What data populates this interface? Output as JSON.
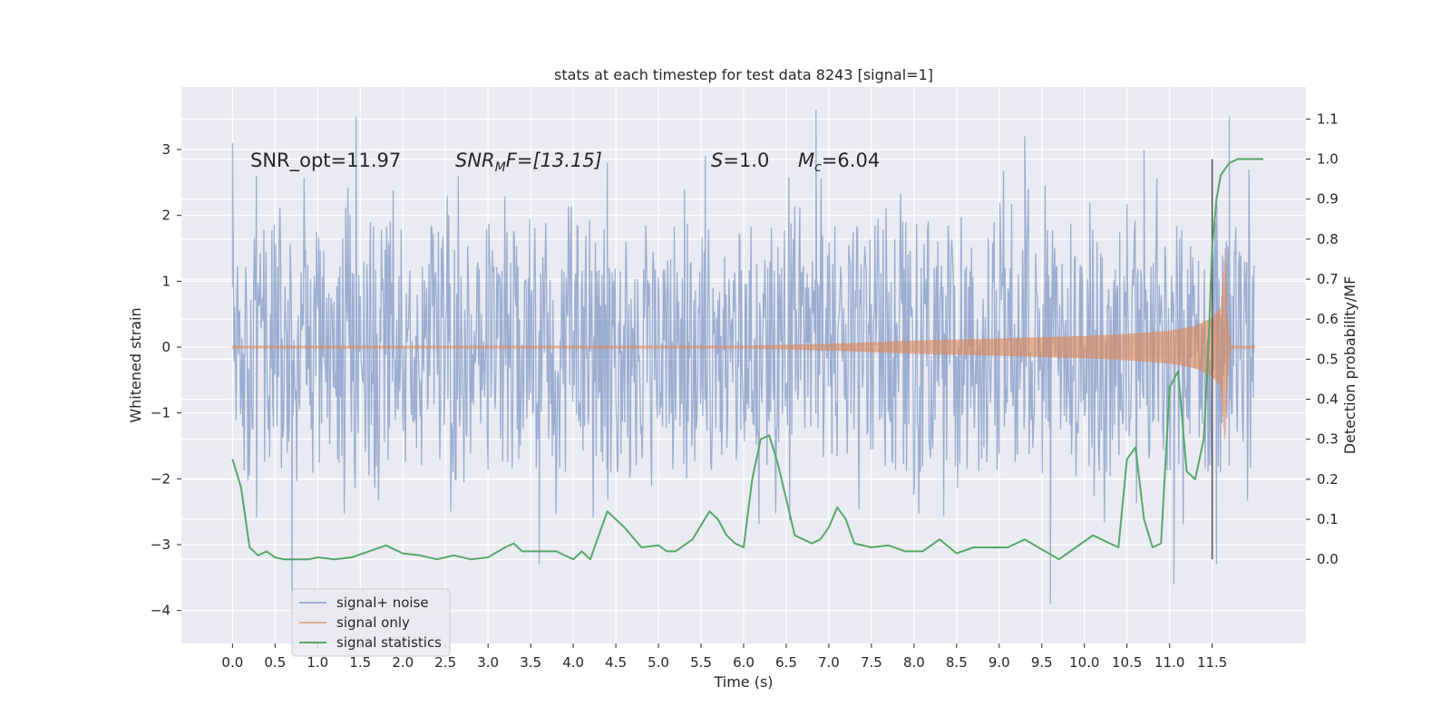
{
  "chart_data": {
    "type": "line",
    "title": "stats at each timestep for test data 8243 [signal=1]",
    "xlabel": "Time (s)",
    "ylabel_left": "Whitened strain",
    "ylabel_right": "Detection probability/MF",
    "xlim": [
      -0.6,
      12.6
    ],
    "ylim_left": [
      -4.5,
      3.95
    ],
    "ylim_right": [
      -0.21,
      1.18
    ],
    "x_ticks": [
      "0.0",
      "0.5",
      "1.0",
      "1.5",
      "2.0",
      "2.5",
      "3.0",
      "3.5",
      "4.0",
      "4.5",
      "5.0",
      "5.5",
      "6.0",
      "6.5",
      "7.0",
      "7.5",
      "8.0",
      "8.5",
      "9.0",
      "9.5",
      "10.0",
      "10.5",
      "11.0",
      "11.5"
    ],
    "y_ticks_left": [
      "3",
      "2",
      "1",
      "0",
      "−1",
      "−2",
      "−3",
      "−4"
    ],
    "y_ticks_right": [
      "1.1",
      "1.0",
      "0.9",
      "0.8",
      "0.7",
      "0.6",
      "0.5",
      "0.4",
      "0.3",
      "0.2",
      "0.1",
      "0.0"
    ],
    "grid": true,
    "legend_position": "lower-left",
    "annotations": {
      "snr_opt": "SNR_opt=11.97",
      "snr_mf_a": "SNR",
      "snr_mf_sub": "M",
      "snr_mf_b": "F=[13.15]",
      "s_a": "S",
      "s_b": "=1.0",
      "mc_a": "M",
      "mc_sub": "c",
      "mc_b": "=6.04"
    },
    "vline_x": 11.5,
    "series": [
      {
        "name": "signal+ noise",
        "color": "#4c72b0",
        "axis": "left",
        "description_envelope": {
          "x": [
            0.0,
            12.0
          ],
          "typical_max": 1.6,
          "typical_min": -1.6,
          "peaks": [
            [
              0.0,
              3.1
            ],
            [
              0.28,
              2.6
            ],
            [
              1.45,
              3.5
            ],
            [
              2.65,
              2.6
            ],
            [
              4.4,
              2.8
            ],
            [
              5.55,
              2.9
            ],
            [
              6.85,
              3.6
            ],
            [
              9.3,
              3.2
            ],
            [
              10.7,
              3.0
            ],
            [
              11.7,
              3.5
            ],
            [
              0.7,
              -4.0
            ],
            [
              3.6,
              -3.3
            ],
            [
              9.6,
              -3.9
            ],
            [
              11.05,
              -3.6
            ],
            [
              11.55,
              -3.3
            ]
          ]
        }
      },
      {
        "name": "signal only",
        "color": "#dd8452",
        "axis": "left",
        "envelope": {
          "x": [
            0.0,
            6.0,
            7.0,
            8.0,
            9.0,
            10.0,
            10.5,
            11.0,
            11.3,
            11.5,
            11.6,
            11.65,
            11.68,
            11.72,
            12.0
          ],
          "amp": [
            0.02,
            0.02,
            0.05,
            0.1,
            0.13,
            0.17,
            0.2,
            0.25,
            0.32,
            0.45,
            0.6,
            1.5,
            0.5,
            0.02,
            0.02
          ]
        }
      },
      {
        "name": "signal statistics",
        "color": "#55a868",
        "axis": "right",
        "x": [
          0.0,
          0.1,
          0.2,
          0.3,
          0.4,
          0.5,
          0.6,
          0.7,
          0.8,
          0.9,
          1.0,
          1.2,
          1.4,
          1.6,
          1.8,
          1.9,
          2.0,
          2.2,
          2.4,
          2.6,
          2.8,
          3.0,
          3.2,
          3.3,
          3.4,
          3.6,
          3.8,
          4.0,
          4.1,
          4.2,
          4.4,
          4.5,
          4.6,
          4.8,
          5.0,
          5.1,
          5.2,
          5.4,
          5.6,
          5.7,
          5.8,
          5.9,
          6.0,
          6.1,
          6.2,
          6.3,
          6.4,
          6.6,
          6.8,
          6.9,
          7.0,
          7.1,
          7.2,
          7.3,
          7.5,
          7.7,
          7.9,
          8.1,
          8.3,
          8.5,
          8.7,
          8.9,
          9.1,
          9.3,
          9.5,
          9.7,
          9.9,
          10.1,
          10.3,
          10.4,
          10.5,
          10.6,
          10.7,
          10.8,
          10.9,
          11.0,
          11.1,
          11.2,
          11.3,
          11.4,
          11.45,
          11.5,
          11.55,
          11.6,
          11.7,
          11.8,
          11.9,
          12.0,
          12.1
        ],
        "y": [
          0.25,
          0.18,
          0.03,
          0.01,
          0.02,
          0.005,
          0.0,
          0.0,
          0.0,
          0.0,
          0.005,
          0.0,
          0.005,
          0.02,
          0.035,
          0.025,
          0.015,
          0.01,
          0.0,
          0.01,
          0.0,
          0.005,
          0.03,
          0.04,
          0.02,
          0.02,
          0.02,
          0.0,
          0.02,
          0.0,
          0.12,
          0.1,
          0.08,
          0.03,
          0.035,
          0.02,
          0.02,
          0.05,
          0.12,
          0.1,
          0.06,
          0.04,
          0.03,
          0.2,
          0.3,
          0.31,
          0.24,
          0.06,
          0.04,
          0.05,
          0.08,
          0.13,
          0.1,
          0.04,
          0.03,
          0.035,
          0.02,
          0.02,
          0.05,
          0.015,
          0.03,
          0.03,
          0.03,
          0.05,
          0.025,
          0.0,
          0.03,
          0.06,
          0.04,
          0.03,
          0.25,
          0.28,
          0.1,
          0.03,
          0.04,
          0.43,
          0.47,
          0.22,
          0.2,
          0.3,
          0.5,
          0.78,
          0.9,
          0.96,
          0.99,
          1.0,
          1.0,
          1.0,
          1.0
        ]
      }
    ]
  }
}
